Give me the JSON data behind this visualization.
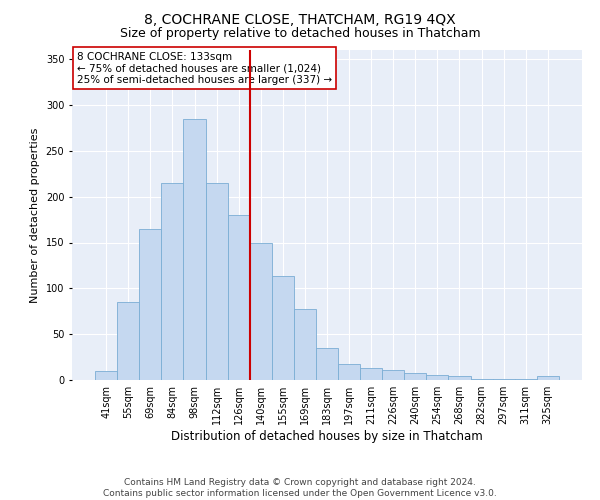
{
  "title": "8, COCHRANE CLOSE, THATCHAM, RG19 4QX",
  "subtitle": "Size of property relative to detached houses in Thatcham",
  "xlabel": "Distribution of detached houses by size in Thatcham",
  "ylabel": "Number of detached properties",
  "categories": [
    "41sqm",
    "55sqm",
    "69sqm",
    "84sqm",
    "98sqm",
    "112sqm",
    "126sqm",
    "140sqm",
    "155sqm",
    "169sqm",
    "183sqm",
    "197sqm",
    "211sqm",
    "226sqm",
    "240sqm",
    "254sqm",
    "268sqm",
    "282sqm",
    "297sqm",
    "311sqm",
    "325sqm"
  ],
  "values": [
    10,
    85,
    165,
    215,
    285,
    215,
    180,
    150,
    113,
    77,
    35,
    17,
    13,
    11,
    8,
    5,
    4,
    1,
    1,
    1,
    4
  ],
  "bar_color": "#c5d8f0",
  "bar_edge_color": "#7aadd4",
  "fig_background": "#ffffff",
  "ax_background": "#e8eef8",
  "grid_color": "#ffffff",
  "vline_color": "#cc0000",
  "vline_x_index": 7,
  "annotation_text": "8 COCHRANE CLOSE: 133sqm\n← 75% of detached houses are smaller (1,024)\n25% of semi-detached houses are larger (337) →",
  "annotation_box_facecolor": "#ffffff",
  "annotation_box_edgecolor": "#cc0000",
  "ylim": [
    0,
    360
  ],
  "yticks": [
    0,
    50,
    100,
    150,
    200,
    250,
    300,
    350
  ],
  "title_fontsize": 10,
  "subtitle_fontsize": 9,
  "ylabel_fontsize": 8,
  "xlabel_fontsize": 8.5,
  "annotation_fontsize": 7.5,
  "tick_fontsize": 7,
  "footer_fontsize": 6.5,
  "footer_line1": "Contains HM Land Registry data © Crown copyright and database right 2024.",
  "footer_line2": "Contains public sector information licensed under the Open Government Licence v3.0."
}
